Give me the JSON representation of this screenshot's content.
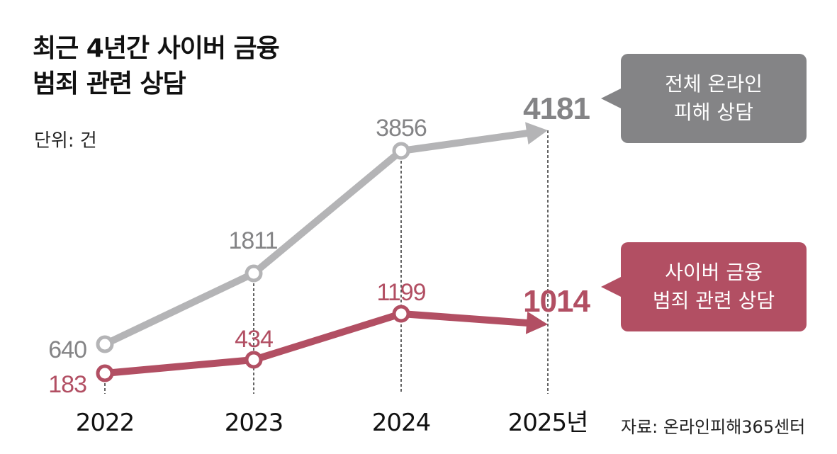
{
  "title_line1": "최근 4년간 사이버 금융",
  "title_line2": "범죄 관련 상담",
  "unit_label": "단위: 건",
  "source_label": "자료: 온라인피해365센터",
  "callouts": {
    "total": "전체 온라인\n피해 상담",
    "cyber": "사이버 금융\n범죄 관련 상담"
  },
  "colors": {
    "total": "#b4b4b6",
    "total_text": "#848486",
    "total_callout": "#848486",
    "cyber": "#b24f63",
    "cyber_callout": "#b24f63"
  },
  "chart_data": {
    "type": "line",
    "categories": [
      "2022",
      "2023",
      "2024",
      "2025년"
    ],
    "series": [
      {
        "key": "total",
        "name": "전체 온라인 피해 상담",
        "values": [
          640,
          1811,
          3856,
          4181
        ]
      },
      {
        "key": "cyber",
        "name": "사이버 금융 범죄 관련 상담",
        "values": [
          183,
          434,
          1199,
          1014
        ]
      }
    ],
    "title": "최근 4년간 사이버 금융 범죄 관련 상담",
    "xlabel": "",
    "ylabel": "",
    "grid": false,
    "last_point_style": "arrow"
  }
}
